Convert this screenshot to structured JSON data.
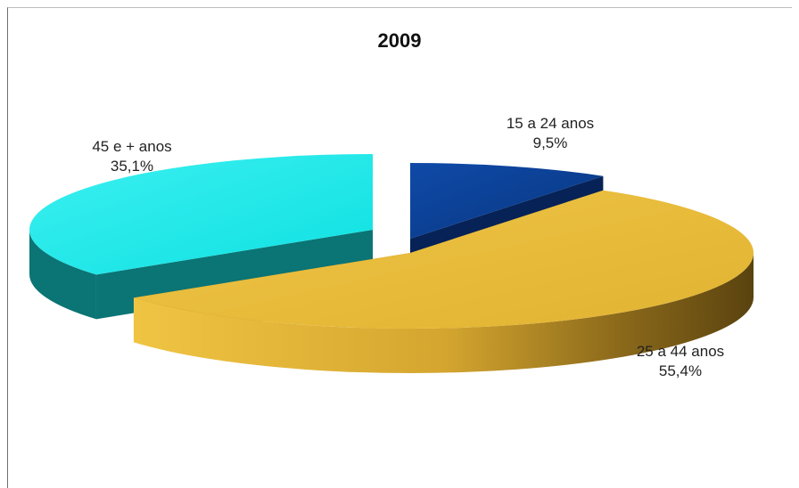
{
  "chart_data": {
    "type": "pie",
    "title": "2009",
    "slices": [
      {
        "label": "15 a 24 anos",
        "value_label": "9,5%",
        "value": 9.5,
        "color": "#0b3a8f",
        "side_color": "#062257"
      },
      {
        "label": "25 a 44 anos",
        "value_label": "55,4%",
        "value": 55.4,
        "color": "#e8b93a",
        "side_color": "#a77e1f"
      },
      {
        "label": "45 e + anos",
        "value_label": "35,1%",
        "value": 35.1,
        "color": "#17e3e6",
        "side_color": "#0b7474"
      }
    ],
    "style": "3d-exploded"
  }
}
